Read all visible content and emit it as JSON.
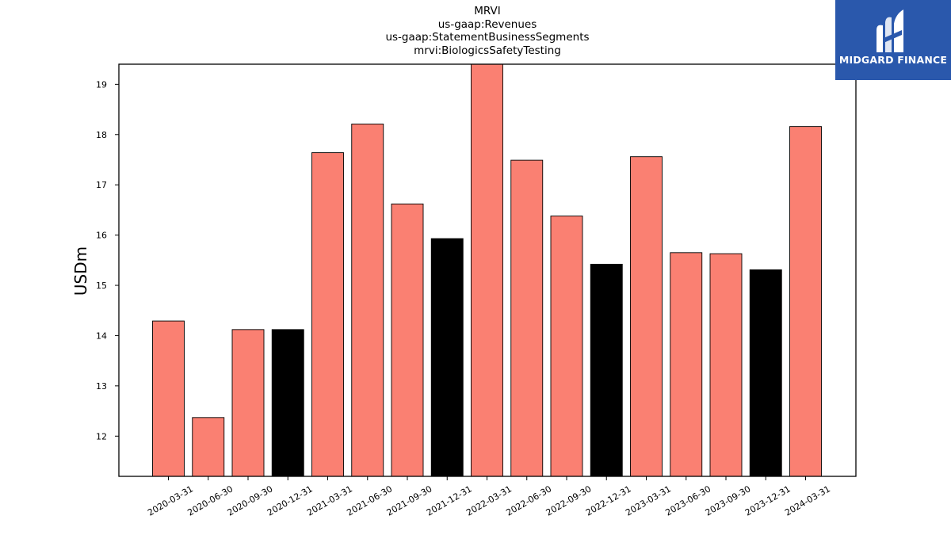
{
  "chart_data": {
    "type": "bar",
    "title_lines": [
      "MRVI",
      "us-gaap:Revenues",
      "us-gaap:StatementBusinessSegments",
      "mrvi:BiologicsSafetyTesting"
    ],
    "xlabel": "",
    "ylabel": "USDm",
    "ylim": [
      11.2,
      19.4
    ],
    "yticks": [
      12,
      13,
      14,
      15,
      16,
      17,
      18,
      19
    ],
    "categories": [
      "2020-03-31",
      "2020-06-30",
      "2020-09-30",
      "2020-12-31",
      "2021-03-31",
      "2021-06-30",
      "2021-09-30",
      "2021-12-31",
      "2022-03-31",
      "2022-06-30",
      "2022-09-30",
      "2022-12-31",
      "2023-03-31",
      "2023-06-30",
      "2023-09-30",
      "2023-12-31",
      "2024-03-31"
    ],
    "values": [
      14.29,
      12.37,
      14.12,
      14.12,
      17.64,
      18.21,
      16.62,
      15.93,
      19.4,
      17.49,
      16.38,
      15.42,
      17.56,
      15.65,
      15.63,
      15.31,
      18.16
    ],
    "bar_colors": [
      "#fa8072",
      "#fa8072",
      "#fa8072",
      "#000000",
      "#fa8072",
      "#fa8072",
      "#fa8072",
      "#000000",
      "#fa8072",
      "#fa8072",
      "#fa8072",
      "#000000",
      "#fa8072",
      "#fa8072",
      "#fa8072",
      "#000000",
      "#fa8072"
    ],
    "grid": false,
    "legend": "none"
  },
  "logo": {
    "text": "MIDGARD FINANCE",
    "background": "#2a58ac",
    "icon": "midgard-mh-icon"
  }
}
